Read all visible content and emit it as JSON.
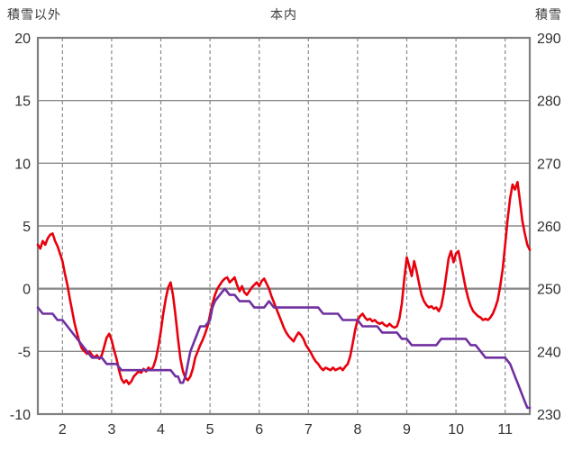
{
  "chart_data": {
    "type": "line",
    "title": "本内",
    "x_axis": {
      "min": 1.5,
      "max": 11.5,
      "ticks": [
        2,
        3,
        4,
        5,
        6,
        7,
        8,
        9,
        10,
        11
      ]
    },
    "left_axis": {
      "label": "積雪以外",
      "min": -10,
      "max": 20,
      "ticks": [
        20,
        15,
        10,
        5,
        0,
        -5,
        -10
      ]
    },
    "right_axis": {
      "label": "積雪",
      "min": 230,
      "max": 290,
      "ticks": [
        290,
        280,
        270,
        260,
        250,
        240,
        230
      ]
    },
    "grid": {
      "h_style": "solid",
      "v_style": "dashed",
      "color": "#8a8a8a",
      "zero_line_left": 0
    },
    "series": [
      {
        "name": "積雪以外",
        "key": "non-snow",
        "axis": "left",
        "color": "#e8000d",
        "points": [
          [
            1.5,
            3.5
          ],
          [
            1.55,
            3.2
          ],
          [
            1.6,
            3.8
          ],
          [
            1.65,
            3.5
          ],
          [
            1.7,
            4.0
          ],
          [
            1.75,
            4.3
          ],
          [
            1.8,
            4.4
          ],
          [
            1.85,
            3.8
          ],
          [
            1.9,
            3.4
          ],
          [
            1.95,
            2.8
          ],
          [
            2.0,
            2.2
          ],
          [
            2.05,
            1.2
          ],
          [
            2.1,
            0.3
          ],
          [
            2.15,
            -0.8
          ],
          [
            2.2,
            -1.8
          ],
          [
            2.25,
            -2.8
          ],
          [
            2.3,
            -3.6
          ],
          [
            2.35,
            -4.3
          ],
          [
            2.4,
            -4.8
          ],
          [
            2.45,
            -5.0
          ],
          [
            2.5,
            -5.2
          ],
          [
            2.55,
            -5.0
          ],
          [
            2.6,
            -5.3
          ],
          [
            2.65,
            -5.5
          ],
          [
            2.7,
            -5.3
          ],
          [
            2.75,
            -5.6
          ],
          [
            2.8,
            -5.3
          ],
          [
            2.85,
            -4.6
          ],
          [
            2.9,
            -3.9
          ],
          [
            2.95,
            -3.6
          ],
          [
            3.0,
            -4.1
          ],
          [
            3.05,
            -4.9
          ],
          [
            3.1,
            -5.6
          ],
          [
            3.15,
            -6.5
          ],
          [
            3.2,
            -7.2
          ],
          [
            3.25,
            -7.5
          ],
          [
            3.3,
            -7.3
          ],
          [
            3.35,
            -7.6
          ],
          [
            3.4,
            -7.4
          ],
          [
            3.45,
            -7.0
          ],
          [
            3.5,
            -6.8
          ],
          [
            3.55,
            -6.6
          ],
          [
            3.6,
            -6.7
          ],
          [
            3.65,
            -6.4
          ],
          [
            3.7,
            -6.6
          ],
          [
            3.75,
            -6.3
          ],
          [
            3.8,
            -6.5
          ],
          [
            3.85,
            -6.2
          ],
          [
            3.9,
            -5.6
          ],
          [
            3.95,
            -4.6
          ],
          [
            4.0,
            -3.4
          ],
          [
            4.05,
            -2.0
          ],
          [
            4.1,
            -0.8
          ],
          [
            4.15,
            0.1
          ],
          [
            4.2,
            0.5
          ],
          [
            4.25,
            -0.6
          ],
          [
            4.3,
            -2.2
          ],
          [
            4.35,
            -4.0
          ],
          [
            4.4,
            -5.6
          ],
          [
            4.45,
            -6.6
          ],
          [
            4.5,
            -7.1
          ],
          [
            4.55,
            -7.3
          ],
          [
            4.6,
            -7.0
          ],
          [
            4.65,
            -6.4
          ],
          [
            4.7,
            -5.5
          ],
          [
            4.75,
            -5.0
          ],
          [
            4.8,
            -4.5
          ],
          [
            4.85,
            -4.1
          ],
          [
            4.9,
            -3.6
          ],
          [
            4.95,
            -3.0
          ],
          [
            5.0,
            -2.1
          ],
          [
            5.05,
            -1.2
          ],
          [
            5.1,
            -0.5
          ],
          [
            5.15,
            0.0
          ],
          [
            5.2,
            0.3
          ],
          [
            5.25,
            0.6
          ],
          [
            5.3,
            0.8
          ],
          [
            5.35,
            0.9
          ],
          [
            5.4,
            0.5
          ],
          [
            5.45,
            0.7
          ],
          [
            5.5,
            0.9
          ],
          [
            5.55,
            0.3
          ],
          [
            5.6,
            -0.2
          ],
          [
            5.65,
            0.2
          ],
          [
            5.7,
            -0.3
          ],
          [
            5.75,
            -0.5
          ],
          [
            5.8,
            -0.2
          ],
          [
            5.85,
            0.1
          ],
          [
            5.9,
            0.3
          ],
          [
            5.95,
            0.5
          ],
          [
            6.0,
            0.2
          ],
          [
            6.05,
            0.6
          ],
          [
            6.1,
            0.8
          ],
          [
            6.15,
            0.4
          ],
          [
            6.2,
            0.0
          ],
          [
            6.25,
            -0.6
          ],
          [
            6.3,
            -1.1
          ],
          [
            6.35,
            -1.6
          ],
          [
            6.4,
            -2.1
          ],
          [
            6.45,
            -2.6
          ],
          [
            6.5,
            -3.1
          ],
          [
            6.55,
            -3.5
          ],
          [
            6.6,
            -3.8
          ],
          [
            6.65,
            -4.0
          ],
          [
            6.7,
            -4.2
          ],
          [
            6.75,
            -3.8
          ],
          [
            6.8,
            -3.5
          ],
          [
            6.85,
            -3.7
          ],
          [
            6.9,
            -4.0
          ],
          [
            6.95,
            -4.5
          ],
          [
            7.0,
            -4.8
          ],
          [
            7.05,
            -5.1
          ],
          [
            7.1,
            -5.5
          ],
          [
            7.15,
            -5.8
          ],
          [
            7.2,
            -6.0
          ],
          [
            7.25,
            -6.3
          ],
          [
            7.3,
            -6.5
          ],
          [
            7.35,
            -6.3
          ],
          [
            7.4,
            -6.4
          ],
          [
            7.45,
            -6.5
          ],
          [
            7.5,
            -6.3
          ],
          [
            7.55,
            -6.5
          ],
          [
            7.6,
            -6.4
          ],
          [
            7.65,
            -6.3
          ],
          [
            7.7,
            -6.5
          ],
          [
            7.75,
            -6.2
          ],
          [
            7.8,
            -6.0
          ],
          [
            7.85,
            -5.4
          ],
          [
            7.9,
            -4.4
          ],
          [
            7.95,
            -3.3
          ],
          [
            8.0,
            -2.5
          ],
          [
            8.05,
            -2.2
          ],
          [
            8.1,
            -2.0
          ],
          [
            8.15,
            -2.3
          ],
          [
            8.2,
            -2.5
          ],
          [
            8.25,
            -2.4
          ],
          [
            8.3,
            -2.6
          ],
          [
            8.35,
            -2.5
          ],
          [
            8.4,
            -2.7
          ],
          [
            8.45,
            -2.8
          ],
          [
            8.5,
            -2.7
          ],
          [
            8.55,
            -2.9
          ],
          [
            8.6,
            -3.0
          ],
          [
            8.65,
            -2.8
          ],
          [
            8.7,
            -3.0
          ],
          [
            8.75,
            -3.1
          ],
          [
            8.8,
            -3.0
          ],
          [
            8.85,
            -2.4
          ],
          [
            8.9,
            -1.2
          ],
          [
            8.95,
            0.8
          ],
          [
            9.0,
            2.5
          ],
          [
            9.05,
            1.8
          ],
          [
            9.1,
            1.0
          ],
          [
            9.15,
            2.2
          ],
          [
            9.2,
            1.4
          ],
          [
            9.25,
            0.4
          ],
          [
            9.3,
            -0.5
          ],
          [
            9.35,
            -1.0
          ],
          [
            9.4,
            -1.3
          ],
          [
            9.45,
            -1.5
          ],
          [
            9.5,
            -1.4
          ],
          [
            9.55,
            -1.6
          ],
          [
            9.6,
            -1.5
          ],
          [
            9.65,
            -1.8
          ],
          [
            9.7,
            -1.4
          ],
          [
            9.75,
            -0.4
          ],
          [
            9.8,
            1.0
          ],
          [
            9.85,
            2.4
          ],
          [
            9.9,
            3.0
          ],
          [
            9.95,
            2.1
          ],
          [
            10.0,
            2.8
          ],
          [
            10.05,
            3.0
          ],
          [
            10.1,
            2.0
          ],
          [
            10.15,
            1.0
          ],
          [
            10.2,
            0.0
          ],
          [
            10.25,
            -0.8
          ],
          [
            10.3,
            -1.4
          ],
          [
            10.35,
            -1.8
          ],
          [
            10.4,
            -2.0
          ],
          [
            10.45,
            -2.2
          ],
          [
            10.5,
            -2.3
          ],
          [
            10.55,
            -2.5
          ],
          [
            10.6,
            -2.4
          ],
          [
            10.65,
            -2.5
          ],
          [
            10.7,
            -2.3
          ],
          [
            10.75,
            -2.0
          ],
          [
            10.8,
            -1.5
          ],
          [
            10.85,
            -0.9
          ],
          [
            10.9,
            0.2
          ],
          [
            10.95,
            1.6
          ],
          [
            11.0,
            3.5
          ],
          [
            11.05,
            5.5
          ],
          [
            11.1,
            7.2
          ],
          [
            11.15,
            8.3
          ],
          [
            11.2,
            7.9
          ],
          [
            11.25,
            8.5
          ],
          [
            11.3,
            7.0
          ],
          [
            11.35,
            5.4
          ],
          [
            11.4,
            4.4
          ],
          [
            11.45,
            3.5
          ],
          [
            11.5,
            3.1
          ]
        ]
      },
      {
        "name": "積雪",
        "key": "snow",
        "axis": "right",
        "color": "#7030a0",
        "points": [
          [
            1.5,
            247
          ],
          [
            1.6,
            246
          ],
          [
            1.7,
            246
          ],
          [
            1.8,
            246
          ],
          [
            1.9,
            245
          ],
          [
            2.0,
            245
          ],
          [
            2.1,
            244
          ],
          [
            2.2,
            243
          ],
          [
            2.3,
            242
          ],
          [
            2.4,
            241
          ],
          [
            2.5,
            240
          ],
          [
            2.6,
            239
          ],
          [
            2.7,
            239
          ],
          [
            2.8,
            239
          ],
          [
            2.9,
            238
          ],
          [
            3.0,
            238
          ],
          [
            3.1,
            238
          ],
          [
            3.2,
            237
          ],
          [
            3.3,
            237
          ],
          [
            3.4,
            237
          ],
          [
            3.5,
            237
          ],
          [
            3.6,
            237
          ],
          [
            3.7,
            237
          ],
          [
            3.8,
            237
          ],
          [
            3.9,
            237
          ],
          [
            4.0,
            237
          ],
          [
            4.1,
            237
          ],
          [
            4.2,
            237
          ],
          [
            4.3,
            236
          ],
          [
            4.35,
            236
          ],
          [
            4.4,
            235
          ],
          [
            4.45,
            235
          ],
          [
            4.5,
            236
          ],
          [
            4.55,
            238
          ],
          [
            4.6,
            240
          ],
          [
            4.7,
            242
          ],
          [
            4.8,
            244
          ],
          [
            4.9,
            244
          ],
          [
            5.0,
            245
          ],
          [
            5.05,
            247
          ],
          [
            5.1,
            248
          ],
          [
            5.2,
            249
          ],
          [
            5.3,
            250
          ],
          [
            5.4,
            249
          ],
          [
            5.5,
            249
          ],
          [
            5.6,
            248
          ],
          [
            5.7,
            248
          ],
          [
            5.8,
            248
          ],
          [
            5.9,
            247
          ],
          [
            6.0,
            247
          ],
          [
            6.1,
            247
          ],
          [
            6.2,
            248
          ],
          [
            6.3,
            247
          ],
          [
            6.4,
            247
          ],
          [
            6.5,
            247
          ],
          [
            6.6,
            247
          ],
          [
            6.7,
            247
          ],
          [
            6.8,
            247
          ],
          [
            6.9,
            247
          ],
          [
            7.0,
            247
          ],
          [
            7.1,
            247
          ],
          [
            7.2,
            247
          ],
          [
            7.3,
            246
          ],
          [
            7.4,
            246
          ],
          [
            7.5,
            246
          ],
          [
            7.6,
            246
          ],
          [
            7.7,
            245
          ],
          [
            7.8,
            245
          ],
          [
            7.9,
            245
          ],
          [
            8.0,
            245
          ],
          [
            8.1,
            244
          ],
          [
            8.2,
            244
          ],
          [
            8.3,
            244
          ],
          [
            8.4,
            244
          ],
          [
            8.5,
            243
          ],
          [
            8.6,
            243
          ],
          [
            8.7,
            243
          ],
          [
            8.8,
            243
          ],
          [
            8.9,
            242
          ],
          [
            9.0,
            242
          ],
          [
            9.1,
            241
          ],
          [
            9.2,
            241
          ],
          [
            9.3,
            241
          ],
          [
            9.4,
            241
          ],
          [
            9.5,
            241
          ],
          [
            9.6,
            241
          ],
          [
            9.7,
            242
          ],
          [
            9.8,
            242
          ],
          [
            9.9,
            242
          ],
          [
            10.0,
            242
          ],
          [
            10.1,
            242
          ],
          [
            10.2,
            242
          ],
          [
            10.3,
            241
          ],
          [
            10.4,
            241
          ],
          [
            10.5,
            240
          ],
          [
            10.6,
            239
          ],
          [
            10.7,
            239
          ],
          [
            10.8,
            239
          ],
          [
            10.9,
            239
          ],
          [
            11.0,
            239
          ],
          [
            11.1,
            238
          ],
          [
            11.2,
            236
          ],
          [
            11.25,
            235
          ],
          [
            11.3,
            234
          ],
          [
            11.35,
            233
          ],
          [
            11.4,
            232
          ],
          [
            11.45,
            231
          ],
          [
            11.5,
            231
          ]
        ]
      }
    ]
  }
}
